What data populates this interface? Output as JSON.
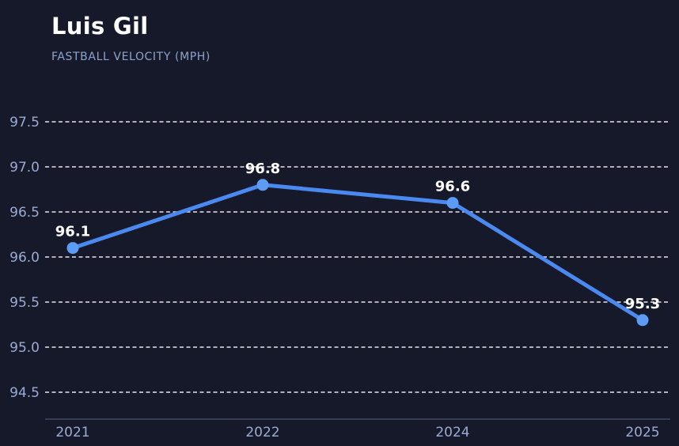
{
  "header": {
    "title": "Luis Gil",
    "subtitle": "FASTBALL VELOCITY (MPH)"
  },
  "chart_data": {
    "type": "line",
    "title": "Luis Gil",
    "subtitle": "FASTBALL VELOCITY (MPH)",
    "x": [
      "2021",
      "2022",
      "2024",
      "2025"
    ],
    "series": [
      {
        "name": "Fastball velocity (mph)",
        "values": [
          96.1,
          96.8,
          96.6,
          95.3
        ],
        "point_labels": [
          "96.1",
          "96.8",
          "96.6",
          "95.3"
        ]
      }
    ],
    "xlabel": "",
    "ylabel": "",
    "ylim": [
      94.5,
      97.5
    ],
    "yticks": [
      {
        "value": 97.5,
        "label": "97.5"
      },
      {
        "value": 97.0,
        "label": "97.0"
      },
      {
        "value": 96.5,
        "label": "96.5"
      },
      {
        "value": 96.0,
        "label": "96.0"
      },
      {
        "value": 95.5,
        "label": "95.5"
      },
      {
        "value": 95.0,
        "label": "95.0"
      },
      {
        "value": 94.5,
        "label": "94.5"
      }
    ],
    "grid": "horizontal-dashed",
    "legend": "none",
    "colors": {
      "background": "#16192a",
      "line": "#4a8af0",
      "marker": "#5d9bf4",
      "grid": "#e6e6ee",
      "axis_line": "#4a5170",
      "tick_label": "#9babd3",
      "point_label": "#ffffff",
      "title": "#ffffff",
      "subtitle": "#8ea3cc"
    }
  }
}
